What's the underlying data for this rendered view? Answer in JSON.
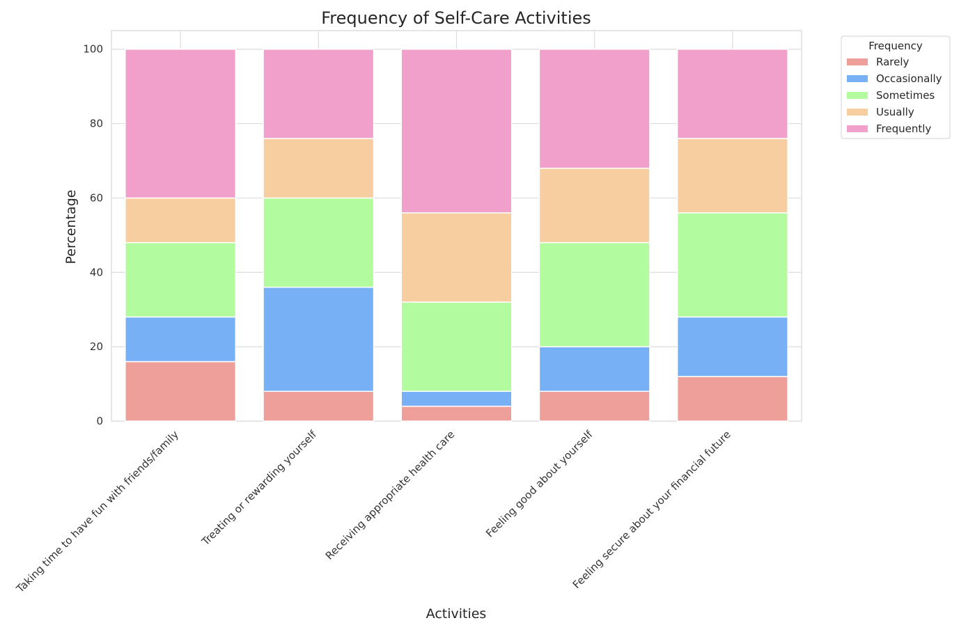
{
  "chart_data": {
    "type": "bar",
    "stacked": true,
    "title": "Frequency of Self-Care Activities",
    "xlabel": "Activities",
    "ylabel": "Percentage",
    "ylim": [
      0,
      105
    ],
    "yticks": [
      0,
      20,
      40,
      60,
      80,
      100
    ],
    "grid": true,
    "legend_title": "Frequency",
    "legend_position": "outside-top-right",
    "categories": [
      "Taking time to have fun with friends/family",
      "Treating or rewarding yourself",
      "Receiving appropriate health care",
      "Feeling good about yourself",
      "Feeling secure about your financial future"
    ],
    "series": [
      {
        "name": "Rarely",
        "color": "#ef9f9a",
        "values": [
          16,
          8,
          4,
          8,
          12
        ]
      },
      {
        "name": "Occasionally",
        "color": "#78b0f6",
        "values": [
          12,
          28,
          4,
          12,
          16
        ]
      },
      {
        "name": "Sometimes",
        "color": "#b2fb9f",
        "values": [
          20,
          24,
          24,
          28,
          28
        ]
      },
      {
        "name": "Usually",
        "color": "#f6cea0",
        "values": [
          12,
          16,
          24,
          20,
          20
        ]
      },
      {
        "name": "Frequently",
        "color": "#f0a0cb",
        "values": [
          40,
          24,
          44,
          32,
          24
        ]
      }
    ]
  }
}
